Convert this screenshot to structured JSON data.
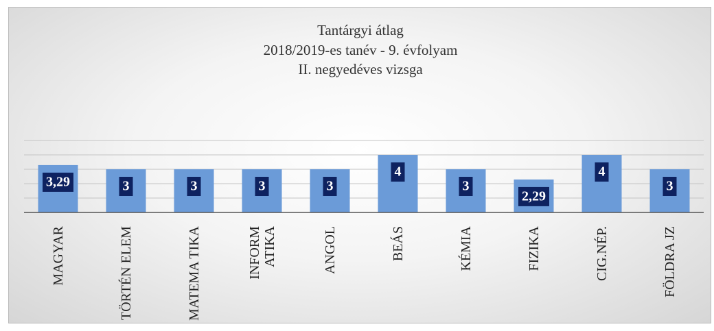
{
  "chart_data": {
    "type": "bar",
    "title": "Tantárgyi átlag",
    "subtitle": [
      "2018/2019-es tanév - 9. évfolyam",
      "II. negyedéves vizsga"
    ],
    "categories": [
      "MAGYAR",
      "TÖRTÉN ELEM",
      "MATEMA TIKA",
      "INFORM ATIKA",
      "ANGOL",
      "BEÁS",
      "KÉMIA",
      "FIZIKA",
      "CIG.NÉP.",
      "FÖLDRA JZ"
    ],
    "values": [
      3.29,
      3,
      3,
      3,
      3,
      4,
      3,
      2.29,
      4,
      3
    ],
    "value_labels": [
      "3,29",
      "3",
      "3",
      "3",
      "3",
      "4",
      "3",
      "2,29",
      "4",
      "3"
    ],
    "color": "#6b9bd8",
    "ylim": [
      0,
      5
    ],
    "yticks": [
      0,
      1,
      2,
      3,
      4,
      5
    ],
    "grid": true
  }
}
